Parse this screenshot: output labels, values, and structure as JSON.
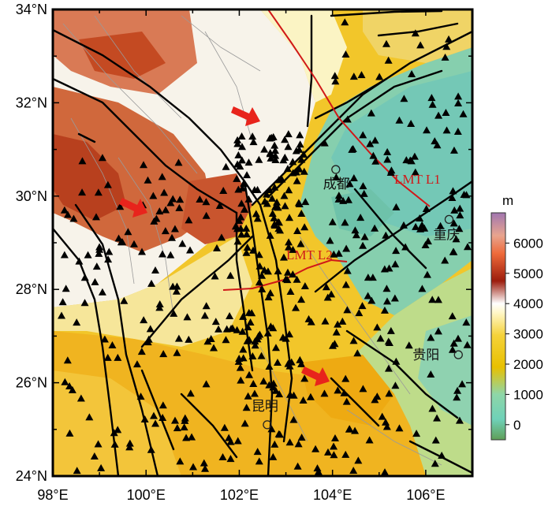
{
  "map": {
    "lat_labels": [
      {
        "value": 34,
        "label": "34°N"
      },
      {
        "value": 32,
        "label": "32°N"
      },
      {
        "value": 30,
        "label": "30°N"
      },
      {
        "value": 28,
        "label": "28°N"
      },
      {
        "value": 26,
        "label": "26°N"
      },
      {
        "value": 24,
        "label": "24°N"
      }
    ],
    "lon_labels": [
      {
        "value": 98,
        "label": "98°E"
      },
      {
        "value": 100,
        "label": "100°E"
      },
      {
        "value": 102,
        "label": "102°E"
      },
      {
        "value": 104,
        "label": "104°E"
      },
      {
        "value": 106,
        "label": "106°E"
      }
    ],
    "extent": {
      "lon_min": 98,
      "lon_max": 107,
      "lat_min": 24,
      "lat_max": 34
    },
    "cities": [
      {
        "name": "成都",
        "lon": 104.07,
        "lat": 30.57
      },
      {
        "name": "重庆",
        "lon": 106.5,
        "lat": 29.5
      },
      {
        "name": "贵阳",
        "lon": 106.7,
        "lat": 26.6
      },
      {
        "name": "昆明",
        "lon": 102.6,
        "lat": 25.1
      }
    ],
    "profiles": [
      {
        "name": "LMT L1",
        "color": "#d01818"
      },
      {
        "name": "LMT L2",
        "color": "#d01818"
      }
    ],
    "colorbar": {
      "unit": "m",
      "ticks": [
        {
          "value": 6000,
          "label": "6000"
        },
        {
          "value": 5000,
          "label": "5000"
        },
        {
          "value": 4000,
          "label": "4000"
        },
        {
          "value": 3000,
          "label": "3000"
        },
        {
          "value": 2000,
          "label": "2000"
        },
        {
          "value": 1000,
          "label": "1000"
        },
        {
          "value": 0,
          "label": "0"
        }
      ],
      "range": [
        -500,
        7000
      ],
      "colors": [
        "#5f9e57",
        "#6fd1b8",
        "#e8c000",
        "#f5d23a",
        "#fff7c8",
        "#ffffff",
        "#9c1c0c",
        "#ee6a3a",
        "#e8a48e",
        "#a176b0"
      ]
    },
    "motion_arrow_color": "#e8241c",
    "station_marker": "triangle",
    "fault_color": "#000000"
  }
}
